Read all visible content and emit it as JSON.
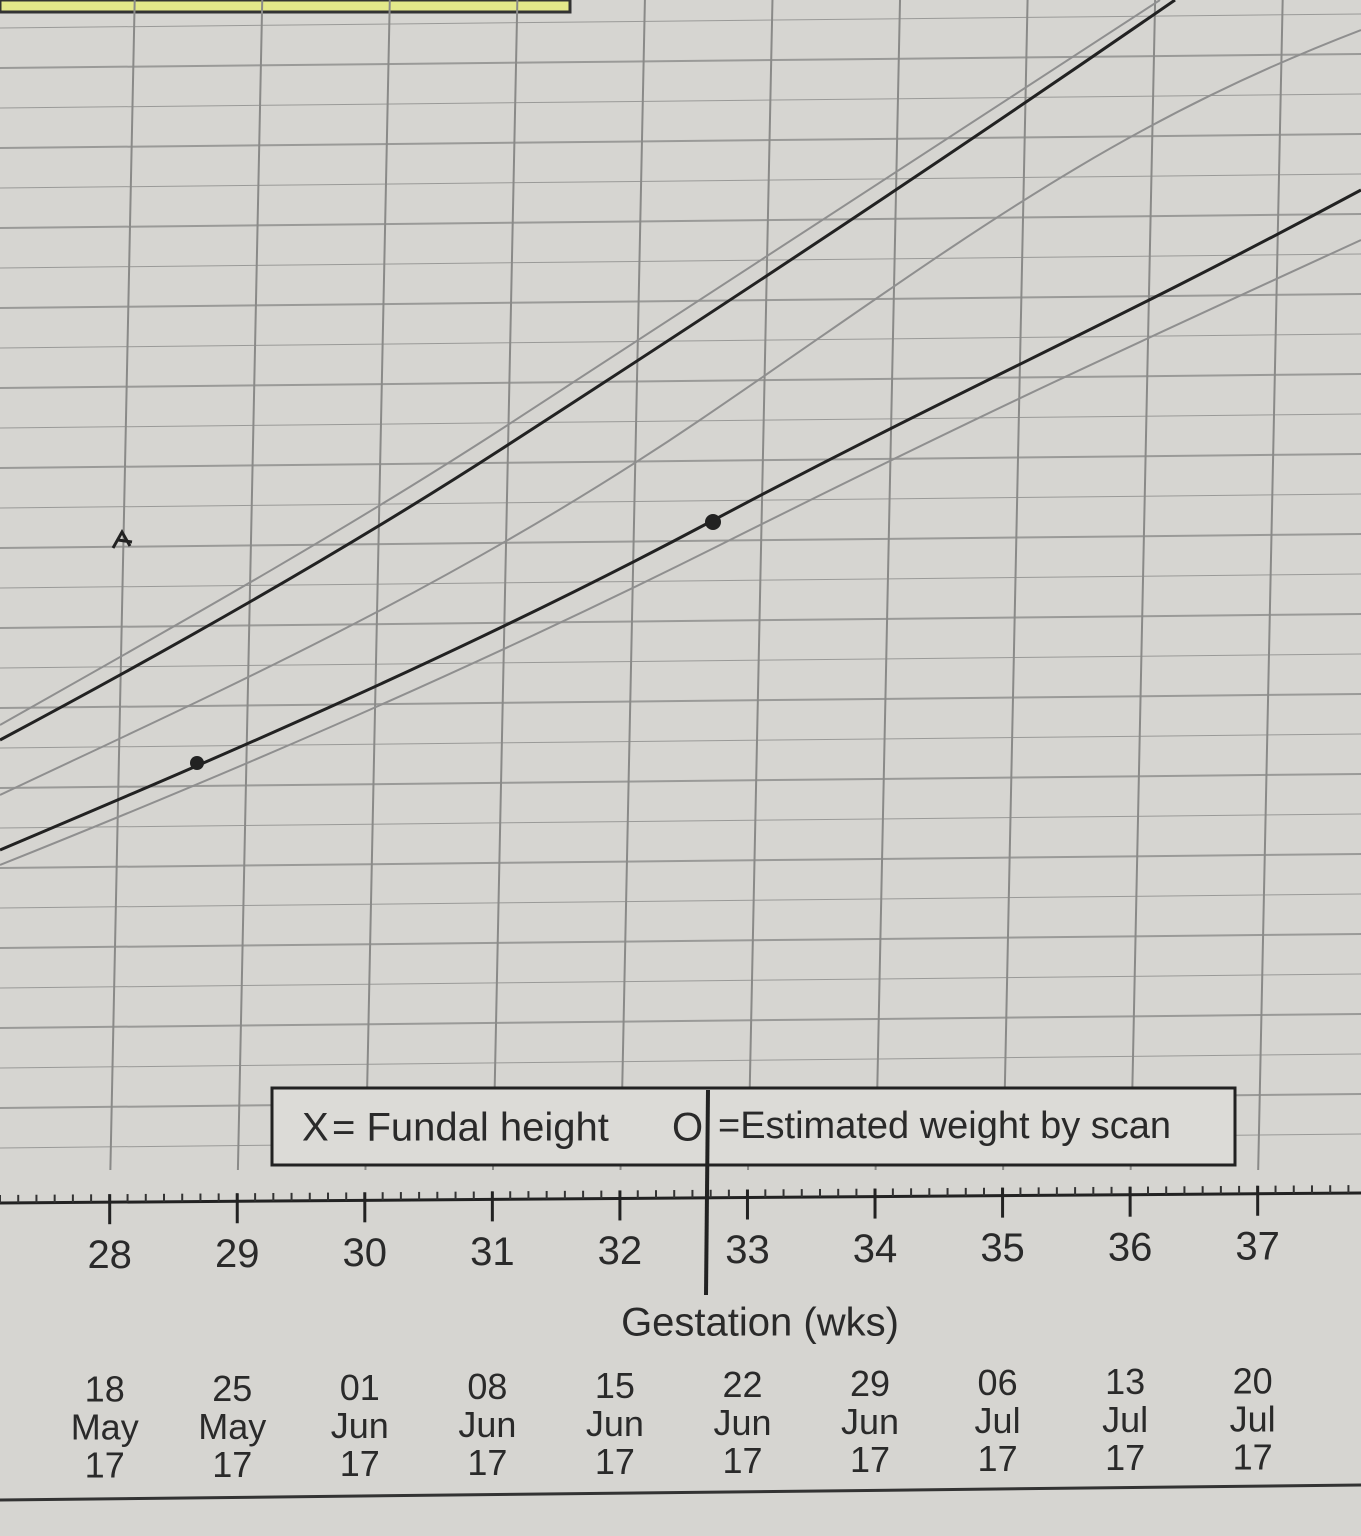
{
  "chart_data": {
    "type": "line",
    "x_label": "Gestation (wks)",
    "xlim": [
      27.14,
      37.81
    ],
    "xticks": [
      28,
      29,
      30,
      31,
      32,
      33,
      34,
      35,
      36,
      37
    ],
    "dates": [
      [
        "18",
        "May",
        "17"
      ],
      [
        "25",
        "May",
        "17"
      ],
      [
        "01",
        "Jun",
        "17"
      ],
      [
        "08",
        "Jun",
        "17"
      ],
      [
        "15",
        "Jun",
        "17"
      ],
      [
        "22",
        "Jun",
        "17"
      ],
      [
        "29",
        "Jun",
        "17"
      ],
      [
        "06",
        "Jul",
        "17"
      ],
      [
        "13",
        "Jul",
        "17"
      ],
      [
        "20",
        "Jul",
        "17"
      ]
    ],
    "legend": [
      {
        "symbol": "X",
        "text": "= Fundal height"
      },
      {
        "symbol": "O",
        "text": "=Estimated weight by scan"
      }
    ],
    "grid": true
  }
}
